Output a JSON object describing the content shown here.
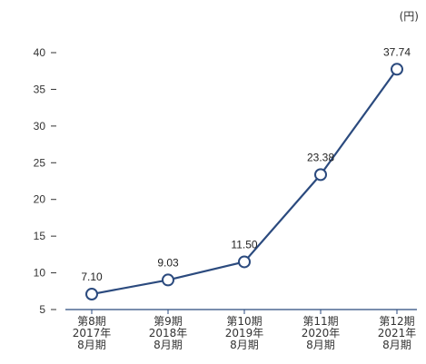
{
  "chart_data": {
    "type": "line",
    "unit": "(円)",
    "categories": [
      [
        "第8期",
        "2017年",
        "8月期"
      ],
      [
        "第9期",
        "2018年",
        "8月期"
      ],
      [
        "第10期",
        "2019年",
        "8月期"
      ],
      [
        "第11期",
        "2020年",
        "8月期"
      ],
      [
        "第12期",
        "2021年",
        "8月期"
      ]
    ],
    "series": [
      {
        "values": [
          7.1,
          9.03,
          11.5,
          23.38,
          37.74
        ]
      }
    ],
    "data_labels": [
      "7.10",
      "9.03",
      "11.50",
      "23.38",
      "37.74"
    ],
    "yticks": [
      5,
      10,
      15,
      20,
      25,
      30,
      35,
      40
    ],
    "ylim": [
      5,
      42
    ],
    "grid": false,
    "colors": {
      "line": "#2b4a7e",
      "marker_fill": "#ffffff",
      "text": "#333333"
    }
  }
}
